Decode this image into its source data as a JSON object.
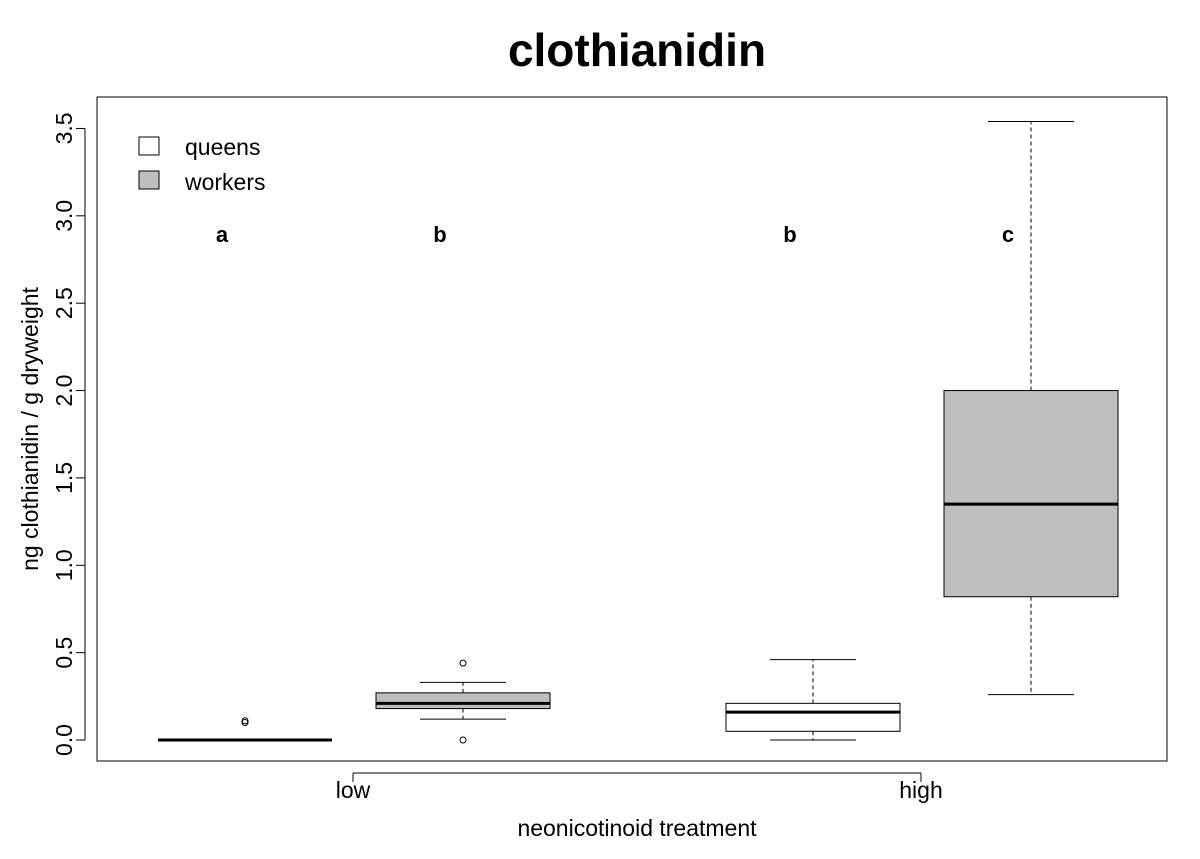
{
  "chart_data": {
    "type": "box",
    "title": "clothianidin",
    "xlabel": "neonicotinoid treatment",
    "ylabel": "ng clothianidin / g dryweight",
    "ylim": [
      -0.12,
      3.68
    ],
    "yticks": [
      "0.0",
      "0.5",
      "1.0",
      "1.5",
      "2.0",
      "2.5",
      "3.0",
      "3.5"
    ],
    "categories": [
      "low",
      "high"
    ],
    "grid": false,
    "legend": {
      "placement": "top-left",
      "entries": [
        {
          "label": "queens",
          "color": "#ffffff"
        },
        {
          "label": "workers",
          "color": "#bebebe"
        }
      ]
    },
    "boxes": [
      {
        "category": "low",
        "group": "queens",
        "fill": "#ffffff",
        "whisker_low": 0.0,
        "q1": 0.0,
        "median": 0.0,
        "q3": 0.0,
        "whisker_high": 0.0,
        "outliers": [
          0.1,
          0.11
        ],
        "letter": "a"
      },
      {
        "category": "low",
        "group": "workers",
        "fill": "#bebebe",
        "whisker_low": 0.12,
        "q1": 0.18,
        "median": 0.21,
        "q3": 0.27,
        "whisker_high": 0.33,
        "outliers": [
          0.0,
          0.44
        ],
        "letter": "b"
      },
      {
        "category": "high",
        "group": "queens",
        "fill": "#ffffff",
        "whisker_low": 0.0,
        "q1": 0.05,
        "median": 0.16,
        "q3": 0.21,
        "whisker_high": 0.46,
        "outliers": [],
        "letter": "b"
      },
      {
        "category": "high",
        "group": "workers",
        "fill": "#bebebe",
        "whisker_low": 0.26,
        "q1": 0.82,
        "median": 1.35,
        "q3": 2.0,
        "whisker_high": 3.54,
        "outliers": [],
        "letter": "c"
      }
    ]
  }
}
